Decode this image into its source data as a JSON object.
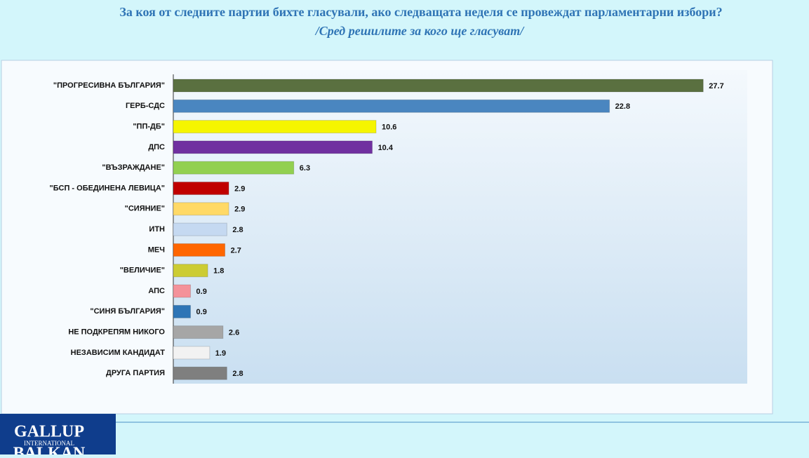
{
  "chart_data": {
    "type": "bar",
    "orientation": "horizontal",
    "title": "За коя от следните партии бихте  гласували,  ако следващата неделя се провеждат парламентарни избори?",
    "subtitle": "/Сред решилите за кого ще гласуват/",
    "categories": [
      "\"ПРОГРЕСИВНА БЪЛГАРИЯ\"",
      "ГЕРБ-СДС",
      "\"ПП-ДБ\"",
      "ДПС",
      "\"ВЪЗРАЖДАНЕ\"",
      "\"БСП - ОБЕДИНЕНА ЛЕВИЦА\"",
      "\"СИЯНИЕ\"",
      "ИТН",
      "МЕЧ",
      "\"ВЕЛИЧИЕ\"",
      "АПС",
      "\"СИНЯ БЪЛГАРИЯ\"",
      "НЕ ПОДКРЕПЯМ НИКОГО",
      "НЕЗАВИСИМ КАНДИДАТ",
      "ДРУГА ПАРТИЯ"
    ],
    "values": [
      27.7,
      22.8,
      10.6,
      10.4,
      6.3,
      2.9,
      2.9,
      2.8,
      2.7,
      1.8,
      0.9,
      0.9,
      2.6,
      1.9,
      2.8
    ],
    "colors": [
      "#5a7040",
      "#4a86c0",
      "#f5f500",
      "#7030a0",
      "#92d050",
      "#c00000",
      "#ffd966",
      "#c5d9f1",
      "#ff6600",
      "#cccc33",
      "#f4929a",
      "#2e75b6",
      "#a6a6a6",
      "#f2f2f2",
      "#7f7f7f"
    ],
    "xlim": [
      0,
      30
    ]
  },
  "logo": {
    "line1": "GALLUP",
    "line2": "INTERNATIONAL",
    "line3": "BALKAN"
  }
}
